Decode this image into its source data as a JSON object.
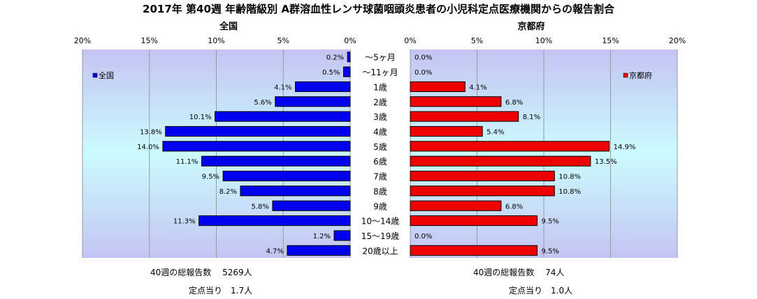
{
  "title": "2017年 第40週 年齢階級別 A群溶血性レンサ球菌咽頭炎患者の小児科定点医療機関からの報告割合",
  "chart_data": [
    {
      "type": "bar",
      "orientation": "horizontal",
      "direction": "reversed",
      "title": "全国",
      "xlim": [
        0,
        20
      ],
      "x_ticks": [
        "0%",
        "5%",
        "10%",
        "15%",
        "20%"
      ],
      "legend": "全国",
      "legend_position": "top-left",
      "color": "#0000ee",
      "categories": [
        "～5ヶ月",
        "～11ヶ月",
        "1歳",
        "2歳",
        "3歳",
        "4歳",
        "5歳",
        "6歳",
        "7歳",
        "8歳",
        "9歳",
        "10～14歳",
        "15～19歳",
        "20歳以上"
      ],
      "values": [
        0.2,
        0.5,
        4.1,
        5.6,
        10.1,
        13.8,
        14.0,
        11.1,
        9.5,
        8.2,
        5.8,
        11.3,
        1.2,
        4.7
      ],
      "value_labels": [
        "0.2%",
        "0.5%",
        "4.1%",
        "5.6%",
        "10.1%",
        "13.8%",
        "14.0%",
        "11.1%",
        "9.5%",
        "8.2%",
        "5.8%",
        "11.3%",
        "1.2%",
        "4.7%"
      ],
      "grid": true
    },
    {
      "type": "bar",
      "orientation": "horizontal",
      "title": "京都府",
      "xlim": [
        0,
        20
      ],
      "x_ticks": [
        "0%",
        "5%",
        "10%",
        "15%",
        "20%"
      ],
      "legend": "京都府",
      "legend_position": "top-right",
      "color": "#ee0000",
      "categories": [
        "～5ヶ月",
        "～11ヶ月",
        "1歳",
        "2歳",
        "3歳",
        "4歳",
        "5歳",
        "6歳",
        "7歳",
        "8歳",
        "9歳",
        "10～14歳",
        "15～19歳",
        "20歳以上"
      ],
      "values": [
        0.0,
        0.0,
        4.1,
        6.8,
        8.1,
        5.4,
        14.9,
        13.5,
        10.8,
        10.8,
        6.8,
        9.5,
        0.0,
        9.5
      ],
      "value_labels": [
        "0.0%",
        "0.0%",
        "4.1%",
        "6.8%",
        "8.1%",
        "5.4%",
        "14.9%",
        "13.5%",
        "10.8%",
        "10.8%",
        "6.8%",
        "9.5%",
        "0.0%",
        "9.5%"
      ],
      "grid": true
    }
  ],
  "footer": {
    "national_total": "40週の総報告数　 5269人",
    "national_per_site": "定点当り　1.7人",
    "kyoto_total": "40週の総報告数　 74人",
    "kyoto_per_site": "定点当り　1.0人"
  }
}
